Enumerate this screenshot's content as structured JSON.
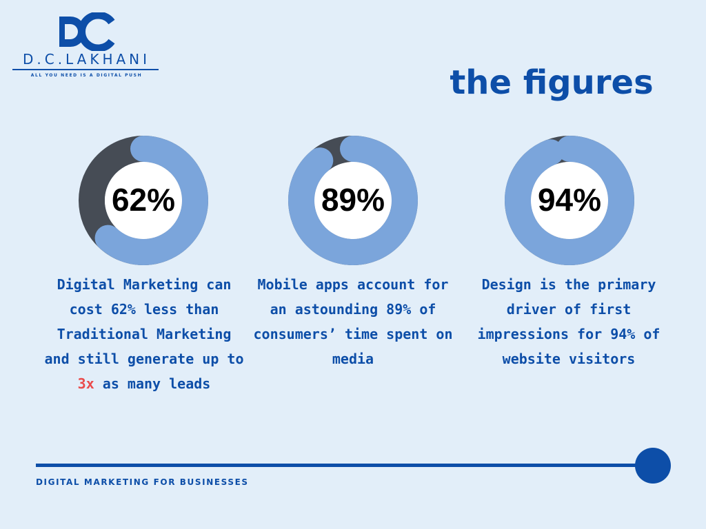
{
  "brand": {
    "name": "D.C.LAKHANI",
    "tagline": "ALL YOU NEED IS A DIGITAL PUSH",
    "color": "#0d4ea8"
  },
  "title": "the figures",
  "stats": [
    {
      "value": "62%",
      "percent": 62,
      "description_before": "Digital Marketing can cost 62% less than Traditional Marketing and still generate up to ",
      "highlight": "3x",
      "description_after": " as many leads"
    },
    {
      "value": "89%",
      "percent": 89,
      "description": "Mobile apps account for an astounding 89% of consumers’ time spent on media"
    },
    {
      "value": "94%",
      "percent": 94,
      "description": "Design is the primary driver of first impressions for 94% of website visitors"
    }
  ],
  "footer": "DIGITAL MARKETING FOR BUSINESSES",
  "colors": {
    "background": "#e2eef9",
    "ring_fill": "#7ba5db",
    "ring_track": "#464c55",
    "highlight": "#ea4b4b"
  }
}
